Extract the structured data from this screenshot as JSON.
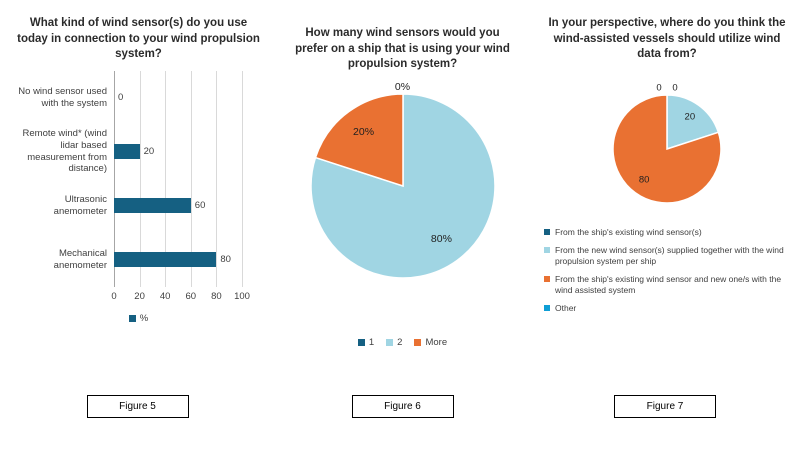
{
  "chart_data": [
    {
      "type": "bar",
      "orientation": "horizontal",
      "title": "What kind of wind sensor(s) do you use today in connection to your wind propulsion system?",
      "figure_label": "Figure 5",
      "categories": [
        "No wind sensor used with the system",
        "Remote wind* (wind lidar based measurement from distance)",
        "Ultrasonic anemometer",
        "Mechanical anemometer"
      ],
      "values": [
        0,
        20,
        60,
        80
      ],
      "data_labels": [
        "0",
        "20",
        "60",
        "80"
      ],
      "xlim": [
        0,
        100
      ],
      "xticks": [
        "0",
        "20",
        "40",
        "60",
        "80",
        "100"
      ],
      "bar_color": "#156082",
      "grid": true,
      "legend": [
        {
          "label": "%",
          "color": "#156082"
        }
      ]
    },
    {
      "type": "pie",
      "title": "How many wind sensors would you prefer on a ship that is using your wind propulsion system?",
      "figure_label": "Figure 6",
      "legend_position": "bottom",
      "slices": [
        {
          "label": "1",
          "value": 0,
          "data_label": "0%",
          "color": "#156082"
        },
        {
          "label": "2",
          "value": 80,
          "data_label": "80%",
          "color": "#A0D5E3"
        },
        {
          "label": "More",
          "value": 20,
          "data_label": "20%",
          "color": "#E97132"
        }
      ]
    },
    {
      "type": "pie",
      "title": "In your perspective, where do you think the wind-assisted vessels should utilize wind data from?",
      "figure_label": "Figure 7",
      "legend_position": "bottom",
      "slices": [
        {
          "label": "From the ship's existing wind sensor(s)",
          "value": 0,
          "data_label": "0",
          "color": "#156082"
        },
        {
          "label": "From the new wind sensor(s) supplied together with the wind propulsion system per ship",
          "value": 20,
          "data_label": "20",
          "color": "#A0D5E3"
        },
        {
          "label": "From the ship's existing wind sensor and new one/s with the wind assisted system",
          "value": 80,
          "data_label": "80",
          "color": "#E97132"
        },
        {
          "label": "Other",
          "value": 0,
          "data_label": "0",
          "color": "#0F9ED5"
        }
      ]
    }
  ]
}
